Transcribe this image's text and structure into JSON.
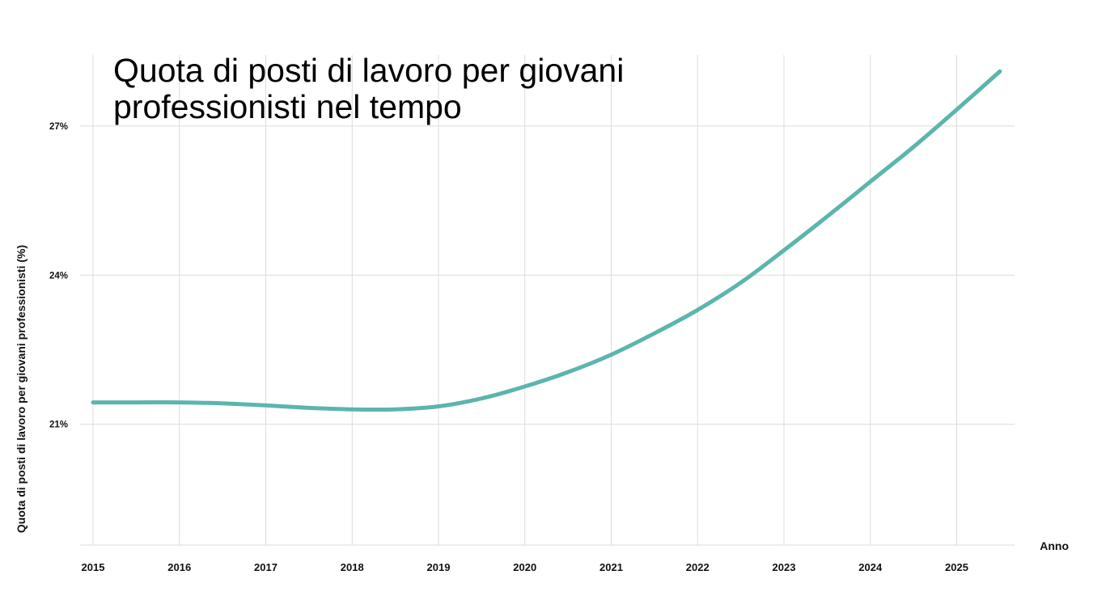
{
  "chart_data": {
    "type": "line",
    "title_lines": [
      "Quota di posti di lavoro per giovani",
      "professionisti nel tempo"
    ],
    "xlabel": "Anno",
    "ylabel": "Quota di posti di lavoro per giovani professionisti (%)",
    "x_ticks": [
      "2015",
      "2016",
      "2017",
      "2018",
      "2019",
      "2020",
      "2021",
      "2022",
      "2023",
      "2024",
      "2025"
    ],
    "y_ticks": [
      "21%",
      "24%",
      "27%"
    ],
    "y_tick_values": [
      21,
      24,
      27
    ],
    "xlim": [
      2014.85,
      2025.67
    ],
    "ylim": [
      18.57,
      28.43
    ],
    "grid": true,
    "line_color": "#5bb5ad",
    "series": [
      {
        "x": [
          2015,
          2015.5,
          2016,
          2016.5,
          2017,
          2017.5,
          2018,
          2018.5,
          2019,
          2019.5,
          2020,
          2020.5,
          2021,
          2021.5,
          2022,
          2022.5,
          2023,
          2023.5,
          2024,
          2024.5,
          2025,
          2025.5
        ],
        "values": [
          21.44,
          21.44,
          21.44,
          21.42,
          21.38,
          21.33,
          21.3,
          21.3,
          21.36,
          21.52,
          21.76,
          22.05,
          22.4,
          22.83,
          23.3,
          23.85,
          24.5,
          25.18,
          25.88,
          26.58,
          27.33,
          28.1
        ]
      }
    ]
  }
}
